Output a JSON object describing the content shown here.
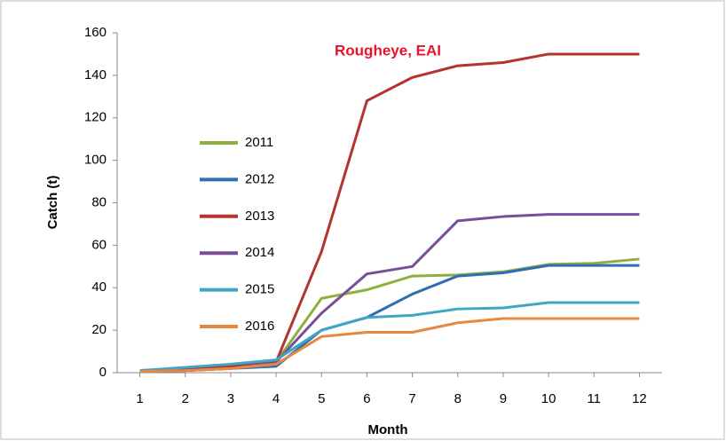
{
  "chart_data": {
    "type": "line",
    "title": "Rougheye, EAI",
    "x_label": "Month",
    "y_label": "Catch (t)",
    "x": [
      1,
      2,
      3,
      4,
      5,
      6,
      7,
      8,
      9,
      10,
      11,
      12
    ],
    "xlim": [
      0.5,
      12.5
    ],
    "xticks": [
      1,
      2,
      3,
      4,
      5,
      6,
      7,
      8,
      9,
      10,
      11,
      12
    ],
    "ylim": [
      0,
      160
    ],
    "yticks": [
      0,
      20,
      40,
      60,
      80,
      100,
      120,
      140,
      160
    ],
    "series": [
      {
        "name": "2011",
        "color": "#8db03e",
        "values": [
          1,
          2,
          3,
          5,
          35,
          39,
          45.5,
          46,
          47.5,
          51,
          51.5,
          53.5
        ]
      },
      {
        "name": "2012",
        "color": "#2f6eb0",
        "values": [
          0.5,
          1,
          2,
          3,
          20,
          26,
          37,
          45.5,
          47,
          50.5,
          50.5,
          50.5
        ]
      },
      {
        "name": "2013",
        "color": "#b2332f",
        "values": [
          1,
          2,
          3,
          5,
          57,
          128,
          139,
          144.5,
          146,
          150,
          150,
          150
        ]
      },
      {
        "name": "2014",
        "color": "#7a4d9b",
        "values": [
          0.5,
          1,
          2,
          5,
          28,
          46.5,
          50,
          71.5,
          73.5,
          74.5,
          74.5,
          74.5
        ]
      },
      {
        "name": "2015",
        "color": "#3fa7c3",
        "values": [
          1,
          2.5,
          4,
          6,
          20,
          26,
          27,
          30,
          30.5,
          33,
          33,
          33
        ]
      },
      {
        "name": "2016",
        "color": "#e8883d",
        "values": [
          0.5,
          1,
          2,
          4,
          17,
          19,
          19,
          23.5,
          25.5,
          25.5,
          25.5,
          25.5
        ]
      }
    ]
  }
}
